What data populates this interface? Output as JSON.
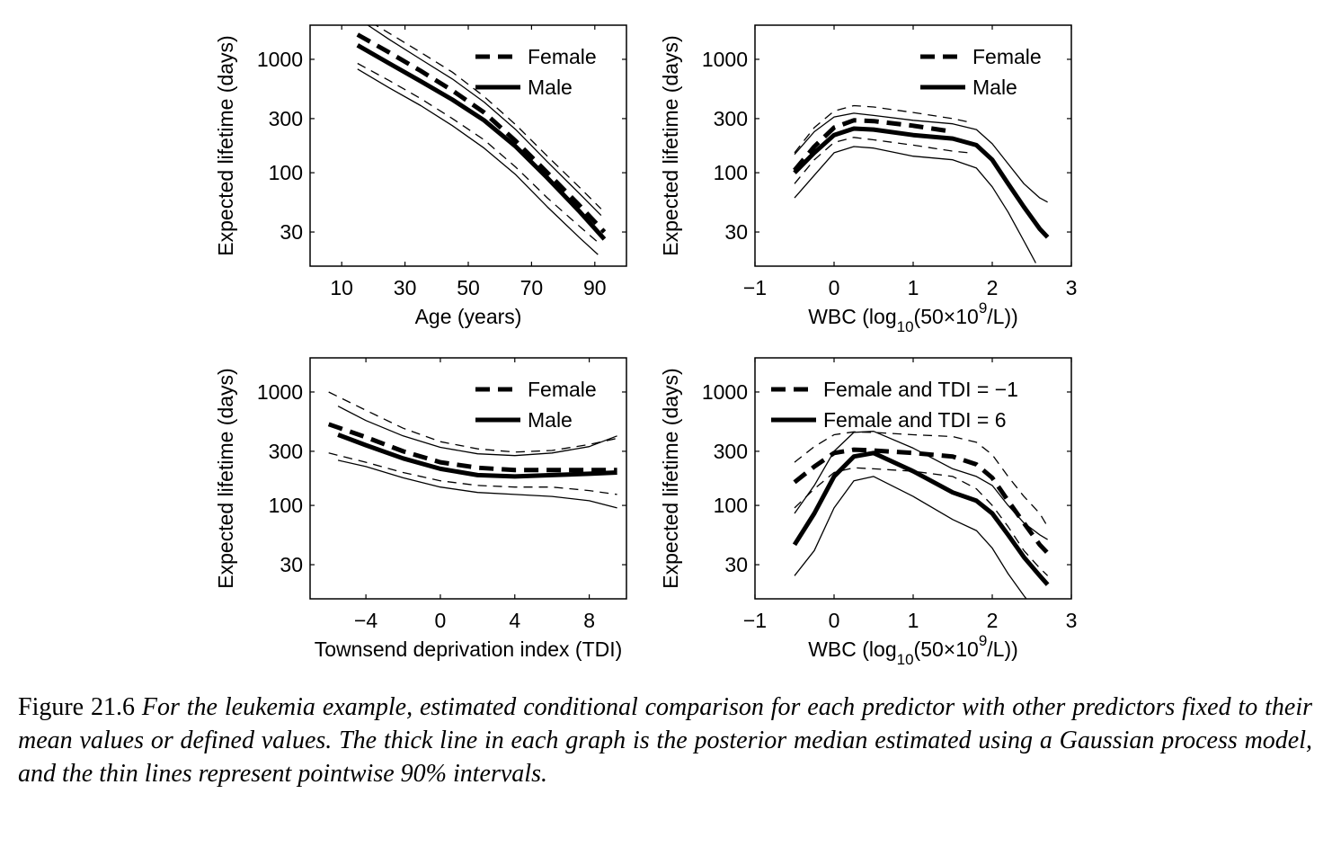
{
  "caption": {
    "label": "Figure 21.6",
    "text": "For the leukemia example, estimated conditional comparison for each predictor with other predictors fixed to their mean values or defined values. The thick line in each graph is the posterior median estimated using a Gaussian process model, and the thin lines represent pointwise 90% intervals."
  },
  "chart_data": [
    {
      "type": "line",
      "xlabel": "Age (years)",
      "ylabel": "Expected lifetime (days)",
      "xlim": [
        0,
        100
      ],
      "xticks": [
        10,
        30,
        50,
        70,
        90
      ],
      "xtick_labels": [
        "10",
        "30",
        "50",
        "70",
        "90"
      ],
      "ylim": [
        15,
        2000
      ],
      "yscale": "log",
      "yticks": [
        30,
        100,
        300,
        1000
      ],
      "ytick_labels": [
        "30",
        "100",
        "300",
        "1000"
      ],
      "legend_position": "top-right",
      "series": [
        {
          "name": "Female",
          "style": "dashed",
          "role": "median",
          "x": [
            15,
            25,
            35,
            45,
            55,
            65,
            75,
            85,
            93
          ],
          "y": [
            1650,
            1150,
            790,
            530,
            340,
            190,
            100,
            52,
            30
          ]
        },
        {
          "name": "Male",
          "style": "solid",
          "role": "median",
          "x": [
            15,
            25,
            35,
            45,
            55,
            65,
            75,
            85,
            93
          ],
          "y": [
            1330,
            920,
            640,
            440,
            290,
            170,
            90,
            46,
            26
          ]
        },
        {
          "name": "",
          "style": "dashed",
          "role": "interval",
          "x": [
            15,
            25,
            35,
            45,
            55,
            65,
            75,
            85,
            92
          ],
          "y": [
            2500,
            1700,
            1150,
            770,
            470,
            265,
            140,
            75,
            48
          ]
        },
        {
          "name": "",
          "style": "dashed",
          "role": "interval",
          "x": [
            15,
            25,
            35,
            45,
            55,
            65,
            75,
            85,
            92
          ],
          "y": [
            920,
            650,
            450,
            300,
            195,
            112,
            60,
            34,
            23
          ]
        },
        {
          "name": "",
          "style": "solid",
          "role": "interval",
          "x": [
            15,
            25,
            35,
            45,
            55,
            65,
            75,
            85,
            92
          ],
          "y": [
            2300,
            1500,
            1000,
            670,
            420,
            240,
            125,
            66,
            42
          ]
        },
        {
          "name": "",
          "style": "solid",
          "role": "interval",
          "x": [
            15,
            25,
            35,
            45,
            55,
            65,
            75,
            85,
            91
          ],
          "y": [
            820,
            560,
            390,
            260,
            165,
            96,
            50,
            27,
            19
          ]
        }
      ]
    },
    {
      "type": "line",
      "xlabel": "WBC (log10(50×10^9/L))",
      "ylabel": "Expected lifetime (days)",
      "xlim": [
        -1,
        3
      ],
      "xticks": [
        -1,
        0,
        1,
        2,
        3
      ],
      "xtick_labels": [
        "−1",
        "0",
        "1",
        "2",
        "3"
      ],
      "ylim": [
        15,
        2000
      ],
      "yscale": "log",
      "yticks": [
        30,
        100,
        300,
        1000
      ],
      "ytick_labels": [
        "30",
        "100",
        "300",
        "1000"
      ],
      "legend_position": "top-right",
      "series": [
        {
          "name": "Female",
          "style": "dashed",
          "role": "median",
          "x": [
            -0.5,
            -0.25,
            0,
            0.25,
            0.5,
            1.0,
            1.5
          ],
          "y": [
            105,
            170,
            250,
            290,
            285,
            260,
            230
          ]
        },
        {
          "name": "Male",
          "style": "solid",
          "role": "median",
          "x": [
            -0.5,
            -0.25,
            0,
            0.25,
            0.5,
            1.0,
            1.5,
            1.8,
            2.0,
            2.2,
            2.4,
            2.6,
            2.7
          ],
          "y": [
            100,
            150,
            215,
            245,
            240,
            215,
            200,
            175,
            130,
            80,
            50,
            32,
            27
          ]
        },
        {
          "name": "",
          "style": "dashed",
          "role": "interval",
          "x": [
            -0.5,
            -0.25,
            0,
            0.25,
            0.5,
            1.0,
            1.5,
            1.7
          ],
          "y": [
            150,
            250,
            350,
            390,
            380,
            340,
            300,
            280
          ]
        },
        {
          "name": "",
          "style": "dashed",
          "role": "interval",
          "x": [
            -0.5,
            -0.25,
            0,
            0.25,
            0.5,
            1.0,
            1.5,
            1.7
          ],
          "y": [
            80,
            130,
            185,
            205,
            195,
            175,
            155,
            150
          ]
        },
        {
          "name": "",
          "style": "solid",
          "role": "interval",
          "x": [
            -0.5,
            -0.25,
            0,
            0.25,
            0.5,
            1.0,
            1.5,
            1.8,
            2.0,
            2.2,
            2.4,
            2.6,
            2.7
          ],
          "y": [
            145,
            230,
            310,
            335,
            320,
            290,
            270,
            240,
            180,
            120,
            80,
            60,
            55
          ]
        },
        {
          "name": "",
          "style": "solid",
          "role": "interval",
          "x": [
            -0.5,
            -0.25,
            0,
            0.25,
            0.5,
            1.0,
            1.5,
            1.8,
            2.0,
            2.2,
            2.4,
            2.55
          ],
          "y": [
            60,
            95,
            150,
            170,
            165,
            140,
            130,
            110,
            75,
            45,
            25,
            16
          ]
        }
      ]
    },
    {
      "type": "line",
      "xlabel": "Townsend deprivation index (TDI)",
      "ylabel": "Expected lifetime (days)",
      "xlim": [
        -7,
        10
      ],
      "xticks": [
        -4,
        0,
        4,
        8
      ],
      "xtick_labels": [
        "−4",
        "0",
        "4",
        "8"
      ],
      "ylim": [
        15,
        2000
      ],
      "yscale": "log",
      "yticks": [
        30,
        100,
        300,
        1000
      ],
      "ytick_labels": [
        "30",
        "100",
        "300",
        "1000"
      ],
      "legend_position": "top-right",
      "series": [
        {
          "name": "Female",
          "style": "dashed",
          "role": "median",
          "x": [
            -6,
            -4,
            -2,
            0,
            2,
            4,
            6,
            8,
            9.5
          ],
          "y": [
            520,
            400,
            300,
            240,
            215,
            205,
            205,
            205,
            205
          ]
        },
        {
          "name": "Male",
          "style": "solid",
          "role": "median",
          "x": [
            -5.5,
            -4,
            -2,
            0,
            2,
            4,
            6,
            8,
            9.5
          ],
          "y": [
            420,
            340,
            260,
            210,
            185,
            180,
            185,
            190,
            195
          ]
        },
        {
          "name": "",
          "style": "dashed",
          "role": "interval",
          "x": [
            -6,
            -4,
            -2,
            0,
            2,
            4,
            6,
            8,
            9.5
          ],
          "y": [
            1000,
            690,
            480,
            365,
            315,
            295,
            305,
            345,
            390
          ]
        },
        {
          "name": "",
          "style": "dashed",
          "role": "interval",
          "x": [
            -6,
            -4,
            -2,
            0,
            2,
            4,
            6,
            8,
            9.5
          ],
          "y": [
            290,
            240,
            195,
            165,
            150,
            145,
            145,
            135,
            125
          ]
        },
        {
          "name": "",
          "style": "solid",
          "role": "interval",
          "x": [
            -5.5,
            -4,
            -2,
            0,
            2,
            4,
            6,
            8,
            9.5
          ],
          "y": [
            750,
            560,
            410,
            325,
            285,
            275,
            290,
            330,
            410
          ]
        },
        {
          "name": "",
          "style": "solid",
          "role": "interval",
          "x": [
            -5.5,
            -4,
            -2,
            0,
            2,
            4,
            6,
            8,
            9.5
          ],
          "y": [
            250,
            220,
            175,
            145,
            130,
            125,
            120,
            110,
            95
          ]
        }
      ]
    },
    {
      "type": "line",
      "xlabel": "WBC (log10(50×10^9/L))",
      "ylabel": "Expected lifetime (days)",
      "xlim": [
        -1,
        3
      ],
      "xticks": [
        -1,
        0,
        1,
        2,
        3
      ],
      "xtick_labels": [
        "−1",
        "0",
        "1",
        "2",
        "3"
      ],
      "ylim": [
        15,
        2000
      ],
      "yscale": "log",
      "yticks": [
        30,
        100,
        300,
        1000
      ],
      "ytick_labels": [
        "30",
        "100",
        "300",
        "1000"
      ],
      "legend_position": "top-left",
      "series": [
        {
          "name": "Female and TDI = −1",
          "style": "dashed",
          "role": "median",
          "x": [
            -0.5,
            -0.25,
            0,
            0.25,
            0.5,
            1.0,
            1.5,
            1.8,
            2.0,
            2.2,
            2.4,
            2.6,
            2.7
          ],
          "y": [
            160,
            220,
            290,
            310,
            305,
            290,
            270,
            230,
            175,
            110,
            70,
            45,
            38
          ]
        },
        {
          "name": "Female and TDI = 6",
          "style": "solid",
          "role": "median",
          "x": [
            -0.5,
            -0.25,
            0,
            0.25,
            0.5,
            1.0,
            1.5,
            1.8,
            2.0,
            2.2,
            2.4,
            2.6,
            2.7
          ],
          "y": [
            45,
            85,
            180,
            270,
            290,
            200,
            130,
            110,
            85,
            55,
            35,
            24,
            20
          ]
        },
        {
          "name": "",
          "style": "dashed",
          "role": "interval",
          "x": [
            -0.5,
            -0.25,
            0,
            0.25,
            0.5,
            1.0,
            1.5,
            1.8,
            2.0,
            2.2,
            2.4,
            2.6,
            2.7
          ],
          "y": [
            240,
            330,
            420,
            445,
            440,
            420,
            405,
            360,
            280,
            180,
            120,
            85,
            65
          ]
        },
        {
          "name": "",
          "style": "dashed",
          "role": "interval",
          "x": [
            -0.5,
            -0.25,
            0,
            0.25,
            0.5,
            1.0,
            1.5,
            1.8,
            2.0,
            2.2,
            2.4,
            2.6,
            2.7
          ],
          "y": [
            95,
            140,
            195,
            215,
            210,
            200,
            180,
            140,
            100,
            65,
            40,
            28,
            24
          ]
        },
        {
          "name": "",
          "style": "solid",
          "role": "interval",
          "x": [
            -0.5,
            -0.25,
            0,
            0.25,
            0.5,
            1.0,
            1.5,
            1.8,
            2.0,
            2.2,
            2.4,
            2.6,
            2.7
          ],
          "y": [
            85,
            150,
            300,
            440,
            450,
            320,
            210,
            180,
            150,
            100,
            70,
            55,
            50
          ]
        },
        {
          "name": "",
          "style": "solid",
          "role": "interval",
          "x": [
            -0.5,
            -0.25,
            0,
            0.25,
            0.5,
            1.0,
            1.5,
            1.8,
            2.0,
            2.2,
            2.4,
            2.5
          ],
          "y": [
            24,
            40,
            95,
            165,
            180,
            120,
            75,
            60,
            42,
            25,
            16,
            13
          ]
        }
      ]
    }
  ]
}
